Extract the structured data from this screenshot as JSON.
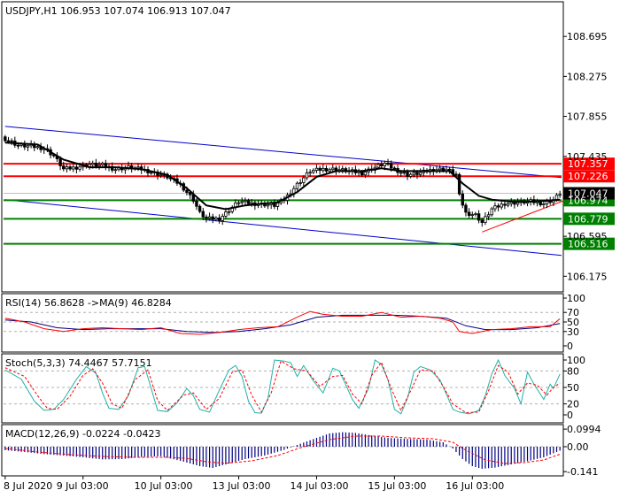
{
  "chart_data": {
    "type": "candlestick",
    "main": {
      "title": "USDJPY,H1  106.953 107.074 106.913 107.047",
      "ylim": [
        106.02,
        109.05
      ],
      "ytick_values": [
        108.695,
        108.275,
        107.855,
        107.435,
        106.595,
        106.175
      ],
      "ytick_labels": [
        "108.695",
        "108.275",
        "107.855",
        "107.435",
        "106.595",
        "106.175"
      ],
      "current_price": 107.047,
      "current_label": "107.047",
      "levels": [
        {
          "value": 107.357,
          "label": "107.357",
          "color": "#ff0000"
        },
        {
          "value": 107.226,
          "label": "107.226",
          "color": "#ff0000"
        },
        {
          "value": 106.974,
          "label": "106.974",
          "color": "#008000"
        },
        {
          "value": 106.779,
          "label": "106.779",
          "color": "#008000"
        },
        {
          "value": 106.516,
          "label": "106.516",
          "color": "#008000"
        }
      ],
      "channel_upper": [
        [
          0,
          107.75
        ],
        [
          175,
          107.2
        ]
      ],
      "channel_lower": [
        [
          0,
          106.98
        ],
        [
          175,
          106.38
        ]
      ],
      "support_line": [
        [
          147,
          106.64
        ],
        [
          173,
          106.98
        ]
      ],
      "close_path": [
        [
          0,
          107.62
        ],
        [
          4,
          107.55
        ],
        [
          8,
          107.54
        ],
        [
          12,
          107.52
        ],
        [
          15,
          107.44
        ],
        [
          18,
          107.3
        ],
        [
          22,
          107.32
        ],
        [
          26,
          107.35
        ],
        [
          30,
          107.34
        ],
        [
          34,
          107.3
        ],
        [
          38,
          107.32
        ],
        [
          42,
          107.3
        ],
        [
          46,
          107.26
        ],
        [
          50,
          107.22
        ],
        [
          54,
          107.14
        ],
        [
          58,
          106.98
        ],
        [
          60,
          106.84
        ],
        [
          62,
          106.78
        ],
        [
          66,
          106.78
        ],
        [
          68,
          106.84
        ],
        [
          72,
          106.96
        ],
        [
          76,
          106.94
        ],
        [
          80,
          106.93
        ],
        [
          83,
          106.92
        ],
        [
          86,
          106.98
        ],
        [
          90,
          107.14
        ],
        [
          94,
          107.28
        ],
        [
          98,
          107.3
        ],
        [
          102,
          107.3
        ],
        [
          106,
          107.28
        ],
        [
          110,
          107.26
        ],
        [
          114,
          107.32
        ],
        [
          117,
          107.36
        ],
        [
          120,
          107.3
        ],
        [
          124,
          107.24
        ],
        [
          128,
          107.26
        ],
        [
          132,
          107.3
        ],
        [
          136,
          107.3
        ],
        [
          139,
          107.24
        ],
        [
          140,
          107.02
        ],
        [
          142,
          106.84
        ],
        [
          145,
          106.82
        ],
        [
          147,
          106.74
        ],
        [
          150,
          106.88
        ],
        [
          154,
          106.94
        ],
        [
          158,
          106.95
        ],
        [
          162,
          106.96
        ],
        [
          166,
          106.94
        ],
        [
          169,
          106.98
        ],
        [
          171,
          107.047
        ]
      ],
      "ma_path": [
        [
          0,
          107.58
        ],
        [
          10,
          107.56
        ],
        [
          18,
          107.4
        ],
        [
          26,
          107.32
        ],
        [
          34,
          107.32
        ],
        [
          42,
          107.3
        ],
        [
          50,
          107.24
        ],
        [
          56,
          107.1
        ],
        [
          62,
          106.92
        ],
        [
          68,
          106.88
        ],
        [
          74,
          106.92
        ],
        [
          80,
          106.94
        ],
        [
          84,
          106.95
        ],
        [
          90,
          107.06
        ],
        [
          96,
          107.22
        ],
        [
          102,
          107.28
        ],
        [
          110,
          107.28
        ],
        [
          116,
          107.31
        ],
        [
          122,
          107.28
        ],
        [
          130,
          107.28
        ],
        [
          137,
          107.28
        ],
        [
          141,
          107.15
        ],
        [
          146,
          107.02
        ],
        [
          150,
          106.98
        ],
        [
          156,
          106.96
        ],
        [
          162,
          106.96
        ],
        [
          168,
          106.97
        ],
        [
          171,
          106.98
        ]
      ]
    },
    "rsi": {
      "title": "RSI(14) 56.8628  ->MA(9) 46.8284",
      "ylim": [
        0,
        100
      ],
      "ytick_values": [
        100,
        70,
        50,
        30,
        0
      ],
      "ytick_labels": [
        "100",
        "70",
        "50",
        "30",
        "0"
      ],
      "rsi_path": [
        [
          0,
          58
        ],
        [
          6,
          50
        ],
        [
          12,
          36
        ],
        [
          18,
          30
        ],
        [
          24,
          36
        ],
        [
          30,
          38
        ],
        [
          36,
          36
        ],
        [
          42,
          34
        ],
        [
          48,
          38
        ],
        [
          54,
          26
        ],
        [
          60,
          24
        ],
        [
          66,
          28
        ],
        [
          72,
          34
        ],
        [
          78,
          38
        ],
        [
          84,
          40
        ],
        [
          90,
          60
        ],
        [
          94,
          72
        ],
        [
          98,
          66
        ],
        [
          104,
          62
        ],
        [
          110,
          62
        ],
        [
          116,
          70
        ],
        [
          122,
          60
        ],
        [
          128,
          62
        ],
        [
          134,
          58
        ],
        [
          138,
          50
        ],
        [
          140,
          30
        ],
        [
          144,
          26
        ],
        [
          150,
          34
        ],
        [
          156,
          36
        ],
        [
          162,
          40
        ],
        [
          168,
          40
        ],
        [
          171,
          56.8628
        ]
      ],
      "ma_path": [
        [
          0,
          54
        ],
        [
          8,
          50
        ],
        [
          16,
          38
        ],
        [
          24,
          34
        ],
        [
          32,
          36
        ],
        [
          40,
          36
        ],
        [
          48,
          36
        ],
        [
          56,
          30
        ],
        [
          64,
          28
        ],
        [
          72,
          30
        ],
        [
          80,
          36
        ],
        [
          88,
          44
        ],
        [
          96,
          60
        ],
        [
          104,
          64
        ],
        [
          112,
          64
        ],
        [
          120,
          64
        ],
        [
          128,
          62
        ],
        [
          136,
          58
        ],
        [
          142,
          42
        ],
        [
          148,
          34
        ],
        [
          156,
          34
        ],
        [
          164,
          38
        ],
        [
          171,
          46.8284
        ]
      ]
    },
    "stoch": {
      "title": "Stoch(5,3,3) 74.4467 57.7151",
      "ylim": [
        0,
        100
      ],
      "ytick_values": [
        100,
        80,
        50,
        20,
        0
      ],
      "ytick_labels": [
        "100",
        "80",
        "50",
        "20",
        "0"
      ],
      "k_path": [
        [
          0,
          82
        ],
        [
          5,
          65
        ],
        [
          9,
          25
        ],
        [
          12,
          8
        ],
        [
          15,
          10
        ],
        [
          18,
          28
        ],
        [
          22,
          65
        ],
        [
          25,
          88
        ],
        [
          28,
          76
        ],
        [
          30,
          40
        ],
        [
          32,
          12
        ],
        [
          35,
          10
        ],
        [
          38,
          35
        ],
        [
          41,
          86
        ],
        [
          43,
          88
        ],
        [
          45,
          48
        ],
        [
          47,
          8
        ],
        [
          50,
          6
        ],
        [
          53,
          22
        ],
        [
          56,
          48
        ],
        [
          58,
          35
        ],
        [
          60,
          10
        ],
        [
          63,
          5
        ],
        [
          66,
          45
        ],
        [
          69,
          82
        ],
        [
          71,
          90
        ],
        [
          73,
          70
        ],
        [
          75,
          25
        ],
        [
          77,
          4
        ],
        [
          79,
          3
        ],
        [
          81,
          30
        ],
        [
          83,
          100
        ],
        [
          86,
          98
        ],
        [
          88,
          95
        ],
        [
          90,
          70
        ],
        [
          92,
          90
        ],
        [
          95,
          62
        ],
        [
          98,
          40
        ],
        [
          101,
          85
        ],
        [
          103,
          80
        ],
        [
          105,
          55
        ],
        [
          107,
          28
        ],
        [
          109,
          12
        ],
        [
          112,
          48
        ],
        [
          114,
          100
        ],
        [
          116,
          92
        ],
        [
          118,
          64
        ],
        [
          120,
          10
        ],
        [
          122,
          2
        ],
        [
          124,
          30
        ],
        [
          126,
          78
        ],
        [
          128,
          88
        ],
        [
          131,
          82
        ],
        [
          134,
          64
        ],
        [
          136,
          38
        ],
        [
          138,
          10
        ],
        [
          140,
          5
        ],
        [
          143,
          2
        ],
        [
          146,
          8
        ],
        [
          148,
          35
        ],
        [
          150,
          75
        ],
        [
          152,
          100
        ],
        [
          154,
          72
        ],
        [
          157,
          48
        ],
        [
          159,
          20
        ],
        [
          161,
          78
        ],
        [
          163,
          56
        ],
        [
          166,
          28
        ],
        [
          168,
          56
        ],
        [
          169,
          48
        ],
        [
          171,
          74.4467
        ]
      ],
      "d_path": [
        [
          0,
          86
        ],
        [
          6,
          70
        ],
        [
          10,
          35
        ],
        [
          13,
          12
        ],
        [
          16,
          10
        ],
        [
          20,
          34
        ],
        [
          24,
          72
        ],
        [
          27,
          84
        ],
        [
          30,
          58
        ],
        [
          33,
          20
        ],
        [
          36,
          12
        ],
        [
          40,
          64
        ],
        [
          44,
          82
        ],
        [
          47,
          26
        ],
        [
          50,
          8
        ],
        [
          55,
          36
        ],
        [
          58,
          40
        ],
        [
          62,
          10
        ],
        [
          66,
          30
        ],
        [
          70,
          78
        ],
        [
          73,
          82
        ],
        [
          76,
          36
        ],
        [
          79,
          5
        ],
        [
          82,
          40
        ],
        [
          85,
          98
        ],
        [
          89,
          84
        ],
        [
          93,
          80
        ],
        [
          97,
          52
        ],
        [
          101,
          70
        ],
        [
          104,
          72
        ],
        [
          107,
          38
        ],
        [
          110,
          20
        ],
        [
          113,
          72
        ],
        [
          116,
          96
        ],
        [
          119,
          48
        ],
        [
          122,
          8
        ],
        [
          125,
          44
        ],
        [
          128,
          82
        ],
        [
          132,
          80
        ],
        [
          135,
          52
        ],
        [
          138,
          20
        ],
        [
          142,
          4
        ],
        [
          146,
          5
        ],
        [
          149,
          44
        ],
        [
          152,
          90
        ],
        [
          155,
          78
        ],
        [
          158,
          38
        ],
        [
          161,
          58
        ],
        [
          164,
          54
        ],
        [
          167,
          36
        ],
        [
          169,
          50
        ],
        [
          171,
          57.7151
        ]
      ]
    },
    "macd": {
      "title": "MACD(12,26,9) -0.0224 -0.0423",
      "ylim": [
        -0.16,
        0.12
      ],
      "ytick_values": [
        0.0994,
        0.0,
        -0.141
      ],
      "ytick_labels": [
        "0.0994",
        "0.00",
        "-0.141"
      ],
      "hist_points": [
        [
          0,
          -0.02
        ],
        [
          6,
          -0.03
        ],
        [
          12,
          -0.042
        ],
        [
          18,
          -0.05
        ],
        [
          24,
          -0.06
        ],
        [
          30,
          -0.072
        ],
        [
          36,
          -0.07
        ],
        [
          42,
          -0.058
        ],
        [
          48,
          -0.054
        ],
        [
          54,
          -0.08
        ],
        [
          60,
          -0.11
        ],
        [
          64,
          -0.12
        ],
        [
          68,
          -0.1
        ],
        [
          74,
          -0.07
        ],
        [
          80,
          -0.05
        ],
        [
          86,
          -0.018
        ],
        [
          90,
          0.01
        ],
        [
          96,
          0.05
        ],
        [
          100,
          0.075
        ],
        [
          104,
          0.082
        ],
        [
          108,
          0.078
        ],
        [
          112,
          0.066
        ],
        [
          118,
          0.05
        ],
        [
          124,
          0.044
        ],
        [
          130,
          0.04
        ],
        [
          135,
          0.025
        ],
        [
          138,
          -0.01
        ],
        [
          141,
          -0.07
        ],
        [
          144,
          -0.11
        ],
        [
          147,
          -0.125
        ],
        [
          151,
          -0.118
        ],
        [
          156,
          -0.1
        ],
        [
          161,
          -0.082
        ],
        [
          166,
          -0.06
        ],
        [
          171,
          -0.0224
        ]
      ],
      "signal_path": [
        [
          0,
          -0.01
        ],
        [
          10,
          -0.03
        ],
        [
          20,
          -0.045
        ],
        [
          30,
          -0.055
        ],
        [
          40,
          -0.06
        ],
        [
          50,
          -0.06
        ],
        [
          56,
          -0.066
        ],
        [
          62,
          -0.085
        ],
        [
          68,
          -0.094
        ],
        [
          76,
          -0.08
        ],
        [
          84,
          -0.05
        ],
        [
          92,
          0.0
        ],
        [
          100,
          0.04
        ],
        [
          108,
          0.06
        ],
        [
          116,
          0.06
        ],
        [
          124,
          0.05
        ],
        [
          132,
          0.045
        ],
        [
          138,
          0.025
        ],
        [
          142,
          -0.02
        ],
        [
          148,
          -0.075
        ],
        [
          154,
          -0.095
        ],
        [
          160,
          -0.09
        ],
        [
          166,
          -0.075
        ],
        [
          171,
          -0.0423
        ]
      ]
    },
    "x_labels": [
      "8 Jul 2020",
      "9 Jul 03:00",
      "10 Jul 03:00",
      "13 Jul 03:00",
      "14 Jul 03:00",
      "15 Jul 03:00",
      "16 Jul 03:00"
    ],
    "x_label_bars": [
      0,
      24,
      48,
      72,
      96,
      120,
      144
    ],
    "bar_count": 172,
    "colors": {
      "channel": "#0000cc",
      "rsi_line": "#ff0000",
      "rsi_ma": "#000080",
      "stoch_k": "#20b2aa",
      "stoch_d": "#ff0000",
      "macd_hist": "#000080",
      "macd_signal": "#ff0000",
      "ma": "#000000",
      "support": "#ff0000",
      "current_bg": "#000000"
    }
  }
}
